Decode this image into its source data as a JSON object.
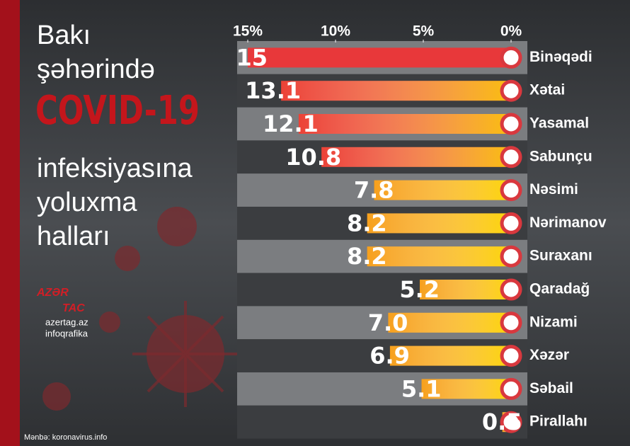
{
  "chart_data": {
    "type": "bar",
    "title_lines": [
      "Bakı",
      "şəhərində",
      "COVID-19",
      "infeksiyasına",
      "yoluxma",
      "halları"
    ],
    "categories": [
      "Binəqədi",
      "Xətai",
      "Yasamal",
      "Sabunçu",
      "Nəsimi",
      "Nərimanov",
      "Suraxanı",
      "Qaradağ",
      "Nizami",
      "Xəzər",
      "Səbail",
      "Pirallahı"
    ],
    "values": [
      15,
      13.1,
      12.1,
      10.8,
      7.8,
      8.2,
      8.2,
      5.2,
      7.0,
      6.9,
      5.1,
      0.5
    ],
    "value_labels": [
      "15",
      "13.1",
      "12.1",
      "10.8",
      "7.8",
      "8.2",
      "8.2",
      "5.2",
      "7.0",
      "6.9",
      "5.1",
      "0.5"
    ],
    "colors": [
      "#e8383a",
      "#ec4236",
      "#ec4236",
      "#ec4236",
      "#f7a01c",
      "#f7a01c",
      "#f7a01c",
      "#f7a01c",
      "#f7a01c",
      "#f7a01c",
      "#f7a01c",
      "#f7a01c"
    ],
    "xlim": [
      0,
      15
    ],
    "x_reversed": true,
    "xticks": [
      {
        "value": 15,
        "label": "15%"
      },
      {
        "value": 10,
        "label": "10%"
      },
      {
        "value": 5,
        "label": "5%"
      },
      {
        "value": 0,
        "label": "0%"
      }
    ],
    "logo": [
      "AZƏR",
      "TAC"
    ],
    "site": "azertag.az",
    "subtitle": "infoqrafika",
    "source": "Mənbə: koronavirus.info"
  }
}
